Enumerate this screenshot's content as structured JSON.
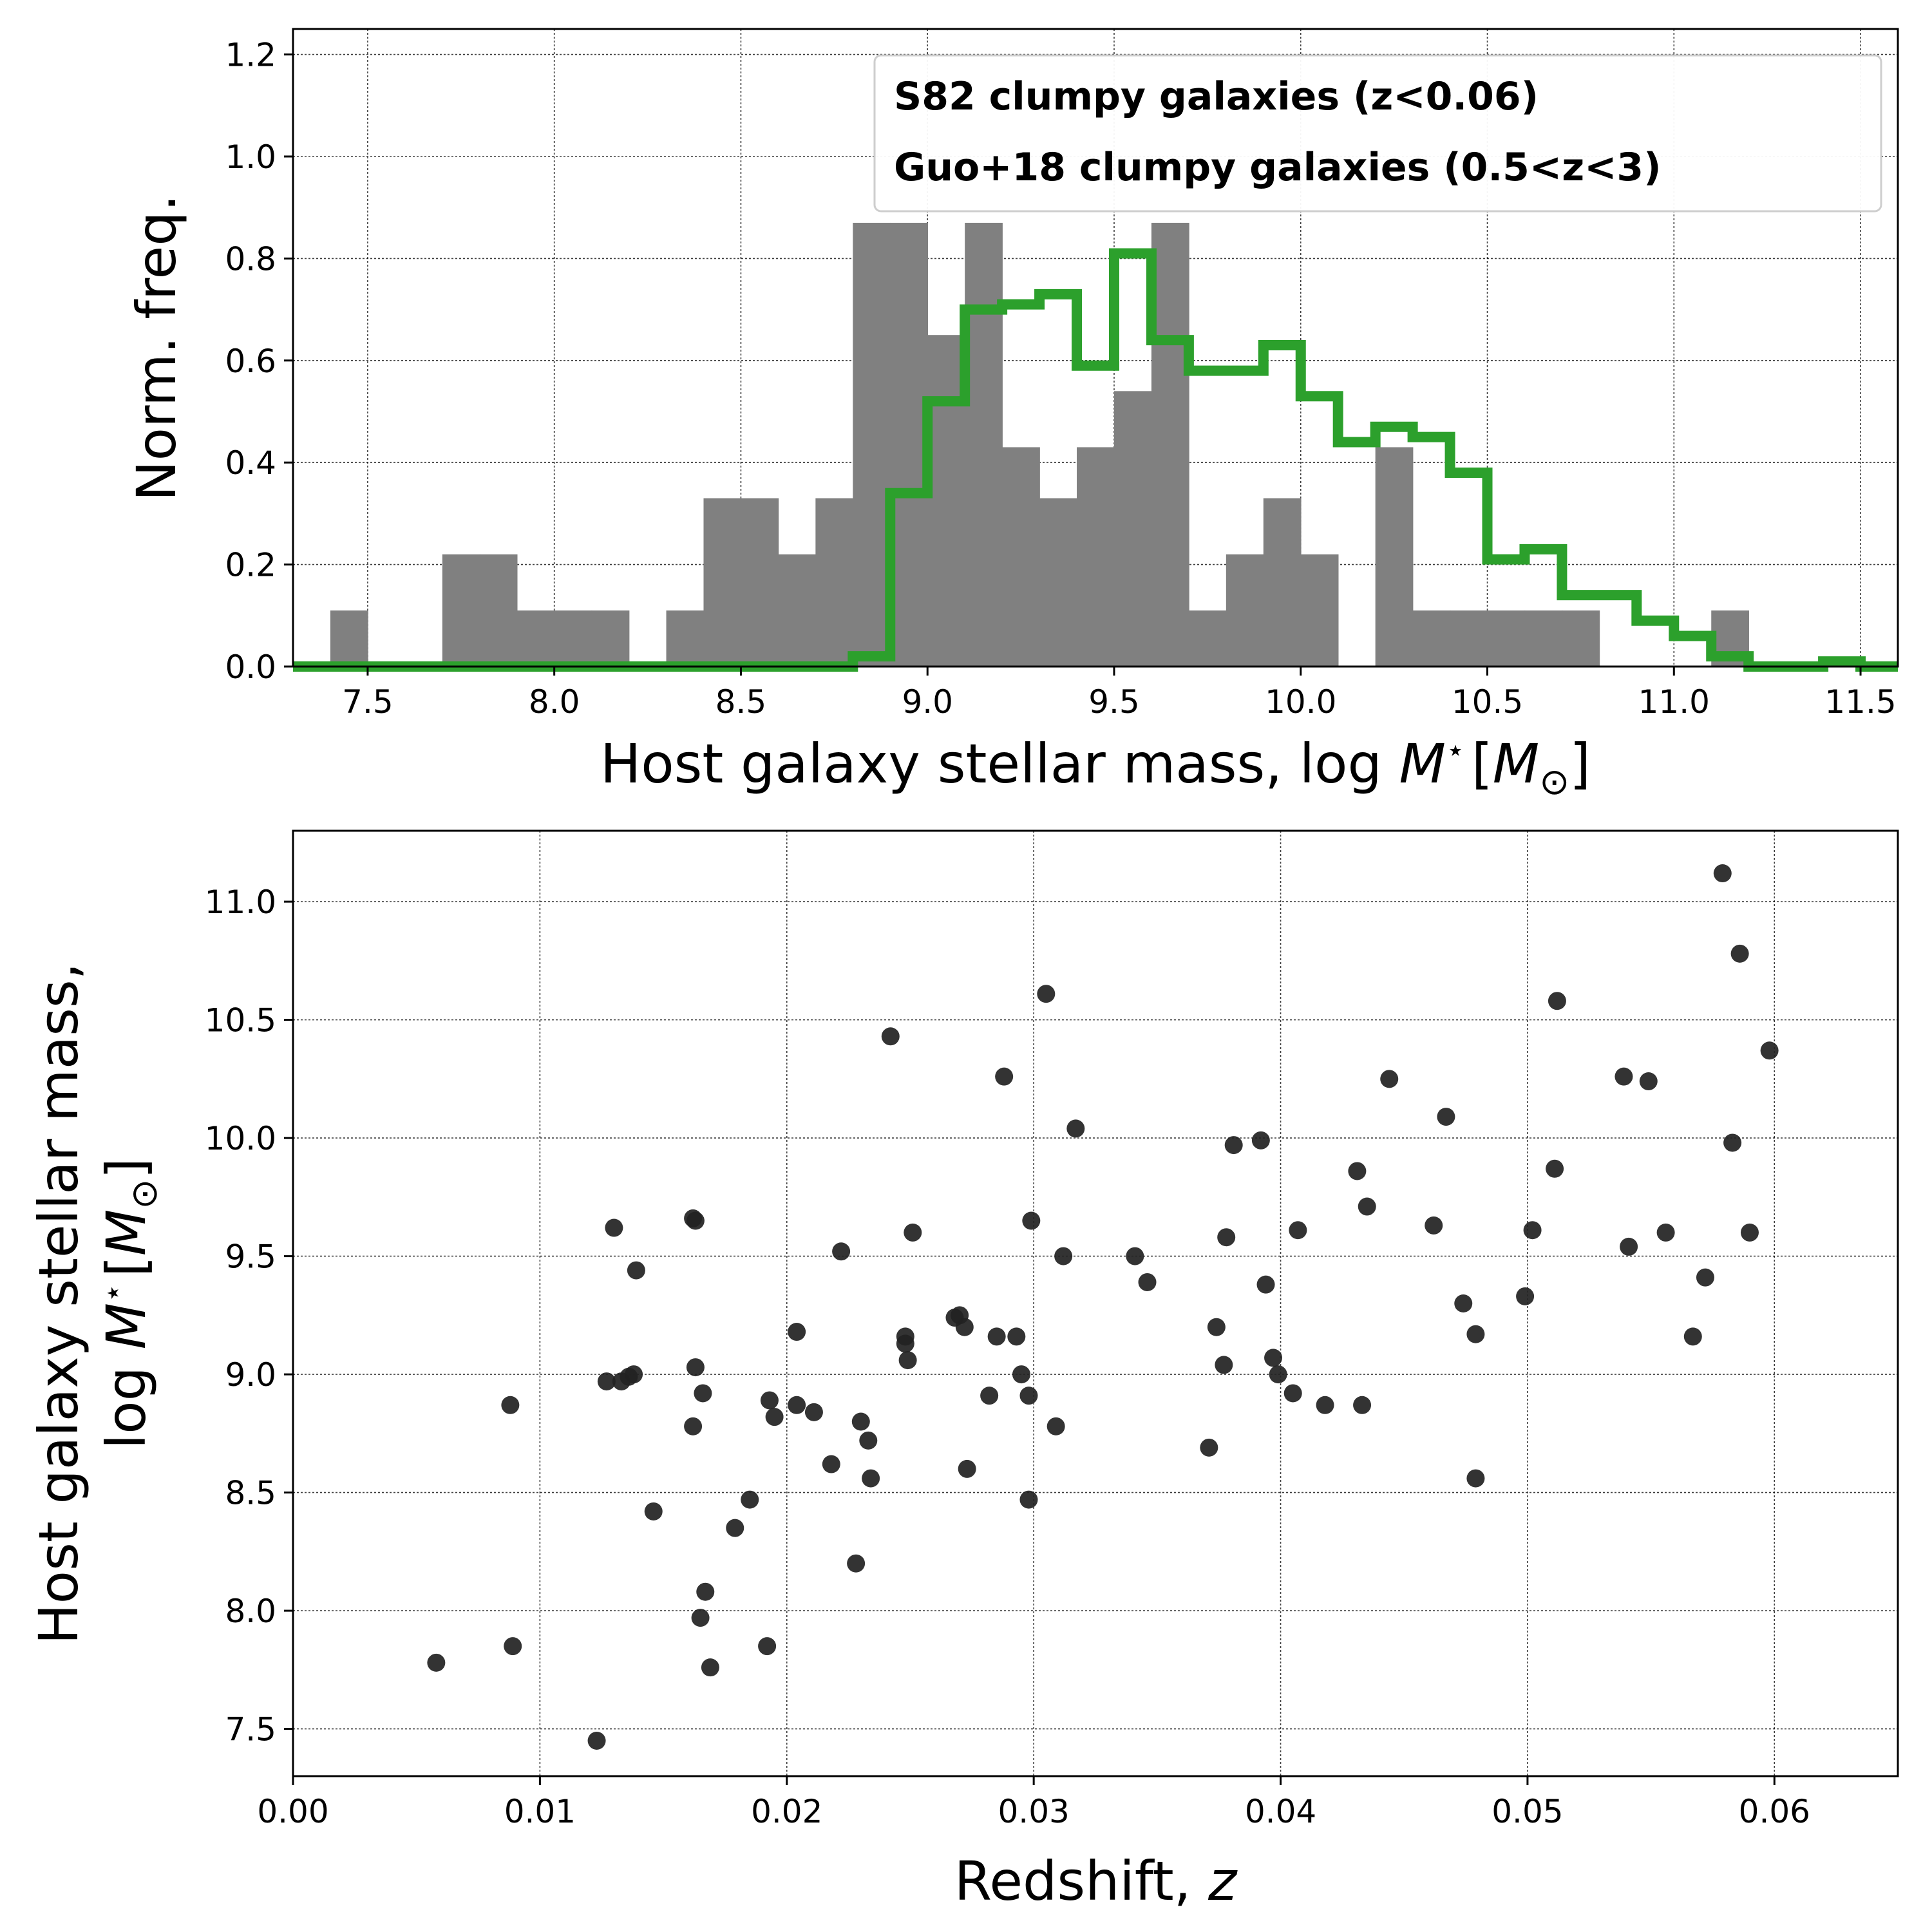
{
  "chart_data": [
    {
      "type": "histogram",
      "panel": "top",
      "xlabel": {
        "main": "Host galaxy stellar mass, log ",
        "math": "M",
        "sup": "⋆",
        "unit": "[M",
        "sub": "⊙",
        "close": "]"
      },
      "ylabel": "Norm. freq.",
      "xlim": [
        7.3,
        11.6
      ],
      "ylim": [
        0.0,
        1.25
      ],
      "xticks": [
        "7.5",
        "8.0",
        "8.5",
        "9.0",
        "9.5",
        "10.0",
        "10.5",
        "11.0",
        "11.5"
      ],
      "yticks": [
        "0.0",
        "0.2",
        "0.4",
        "0.6",
        "0.8",
        "1.0",
        "1.2"
      ],
      "grid": true,
      "legend": {
        "placement": "top-right"
      },
      "series": [
        {
          "name": "S82 clumpy galaxies (z<0.06)",
          "style": "filled-bars",
          "color": "#808080",
          "bin_width": 0.1,
          "bin_starts": [
            7.4,
            7.7,
            7.8,
            7.9,
            8.0,
            8.1,
            8.3,
            8.4,
            8.5,
            8.6,
            8.7,
            8.8,
            8.9,
            9.0,
            9.1,
            9.2,
            9.3,
            9.4,
            9.5,
            9.6,
            9.7,
            9.8,
            9.9,
            10.0,
            10.2,
            10.3,
            10.4,
            10.5,
            10.6,
            10.7,
            11.1
          ],
          "values": [
            0.11,
            0.22,
            0.22,
            0.11,
            0.11,
            0.11,
            0.11,
            0.33,
            0.33,
            0.22,
            0.33,
            0.87,
            0.87,
            0.65,
            0.87,
            0.43,
            0.33,
            0.43,
            0.54,
            0.87,
            0.11,
            0.22,
            0.33,
            0.22,
            0.43,
            0.11,
            0.11,
            0.11,
            0.11,
            0.11,
            0.11
          ]
        },
        {
          "name": "Guo+18 clumpy galaxies (0.5<z<3)",
          "style": "step",
          "color": "#2ca02c",
          "bin_width": 0.1,
          "bin_starts": [
            7.3,
            7.4,
            7.5,
            7.6,
            7.7,
            7.8,
            7.9,
            8.0,
            8.1,
            8.2,
            8.3,
            8.4,
            8.5,
            8.6,
            8.7,
            8.8,
            8.9,
            9.0,
            9.1,
            9.2,
            9.3,
            9.4,
            9.5,
            9.6,
            9.7,
            9.8,
            9.9,
            10.0,
            10.1,
            10.2,
            10.3,
            10.4,
            10.5,
            10.6,
            10.7,
            10.8,
            10.9,
            11.0,
            11.1,
            11.2,
            11.3,
            11.4,
            11.5
          ],
          "values": [
            0.0,
            0.0,
            0.0,
            0.0,
            0.0,
            0.0,
            0.0,
            0.0,
            0.0,
            0.0,
            0.0,
            0.0,
            0.0,
            0.0,
            0.0,
            0.02,
            0.34,
            0.52,
            0.7,
            0.71,
            0.73,
            0.59,
            0.81,
            0.64,
            0.58,
            0.58,
            0.63,
            0.53,
            0.44,
            0.47,
            0.45,
            0.38,
            0.21,
            0.23,
            0.14,
            0.14,
            0.09,
            0.06,
            0.02,
            0.0,
            0.0,
            0.01,
            0.0
          ]
        }
      ]
    },
    {
      "type": "scatter",
      "panel": "bottom",
      "xlabel": {
        "main": "Redshift, ",
        "math": "z"
      },
      "ylabel": {
        "line1": "Host galaxy stellar mass,",
        "main": "log ",
        "math": "M",
        "sup": "⋆",
        "unit": "[M",
        "sub": "⊙",
        "close": "]"
      },
      "xlim": [
        0.0,
        0.065
      ],
      "ylim": [
        7.3,
        11.3
      ],
      "xticks": [
        "0.00",
        "0.01",
        "0.02",
        "0.03",
        "0.04",
        "0.05",
        "0.06"
      ],
      "yticks": [
        "7.5",
        "8.0",
        "8.5",
        "9.0",
        "9.5",
        "10.0",
        "10.5",
        "11.0"
      ],
      "grid": true,
      "marker_color": "#222222",
      "points": [
        [
          0.0058,
          7.78
        ],
        [
          0.0088,
          8.87
        ],
        [
          0.0089,
          7.85
        ],
        [
          0.0123,
          7.45
        ],
        [
          0.0127,
          8.97
        ],
        [
          0.013,
          9.62
        ],
        [
          0.0133,
          8.97
        ],
        [
          0.0136,
          8.99
        ],
        [
          0.0138,
          9.0
        ],
        [
          0.0139,
          9.44
        ],
        [
          0.0146,
          8.42
        ],
        [
          0.0162,
          9.66
        ],
        [
          0.0163,
          9.65
        ],
        [
          0.0163,
          9.03
        ],
        [
          0.0162,
          8.78
        ],
        [
          0.0165,
          7.97
        ],
        [
          0.0166,
          8.92
        ],
        [
          0.0167,
          8.08
        ],
        [
          0.0169,
          7.76
        ],
        [
          0.0179,
          8.35
        ],
        [
          0.0185,
          8.47
        ],
        [
          0.0192,
          7.85
        ],
        [
          0.0193,
          8.89
        ],
        [
          0.0195,
          8.82
        ],
        [
          0.0204,
          9.18
        ],
        [
          0.0204,
          8.87
        ],
        [
          0.0211,
          8.84
        ],
        [
          0.0218,
          8.62
        ],
        [
          0.0222,
          9.52
        ],
        [
          0.0228,
          8.2
        ],
        [
          0.023,
          8.8
        ],
        [
          0.0233,
          8.72
        ],
        [
          0.0234,
          8.56
        ],
        [
          0.0242,
          10.43
        ],
        [
          0.0248,
          9.13
        ],
        [
          0.0248,
          9.16
        ],
        [
          0.0249,
          9.06
        ],
        [
          0.0251,
          9.6
        ],
        [
          0.0268,
          9.24
        ],
        [
          0.027,
          9.25
        ],
        [
          0.0272,
          9.2
        ],
        [
          0.0273,
          8.6
        ],
        [
          0.0282,
          8.91
        ],
        [
          0.0285,
          9.16
        ],
        [
          0.0288,
          10.26
        ],
        [
          0.0293,
          9.16
        ],
        [
          0.0295,
          9.0
        ],
        [
          0.0298,
          8.91
        ],
        [
          0.0298,
          8.47
        ],
        [
          0.0299,
          9.65
        ],
        [
          0.0305,
          10.61
        ],
        [
          0.0309,
          8.78
        ],
        [
          0.0312,
          9.5
        ],
        [
          0.0317,
          10.04
        ],
        [
          0.0341,
          9.5
        ],
        [
          0.0346,
          9.39
        ],
        [
          0.0371,
          8.69
        ],
        [
          0.0374,
          9.2
        ],
        [
          0.0377,
          9.04
        ],
        [
          0.0378,
          9.58
        ],
        [
          0.0381,
          9.97
        ],
        [
          0.0392,
          9.99
        ],
        [
          0.0394,
          9.38
        ],
        [
          0.0397,
          9.07
        ],
        [
          0.0399,
          9.0
        ],
        [
          0.0405,
          8.92
        ],
        [
          0.0407,
          9.61
        ],
        [
          0.0418,
          8.87
        ],
        [
          0.0431,
          9.86
        ],
        [
          0.0433,
          8.87
        ],
        [
          0.0435,
          9.71
        ],
        [
          0.0444,
          10.25
        ],
        [
          0.0462,
          9.63
        ],
        [
          0.0467,
          10.09
        ],
        [
          0.0474,
          9.3
        ],
        [
          0.0479,
          9.17
        ],
        [
          0.0479,
          8.56
        ],
        [
          0.0499,
          9.33
        ],
        [
          0.0502,
          9.61
        ],
        [
          0.0511,
          9.87
        ],
        [
          0.0512,
          10.58
        ],
        [
          0.0539,
          10.26
        ],
        [
          0.0541,
          9.54
        ],
        [
          0.0549,
          10.24
        ],
        [
          0.0556,
          9.6
        ],
        [
          0.0567,
          9.16
        ],
        [
          0.0572,
          9.41
        ],
        [
          0.0579,
          11.12
        ],
        [
          0.0583,
          9.98
        ],
        [
          0.0586,
          10.78
        ],
        [
          0.059,
          9.6
        ],
        [
          0.0598,
          10.37
        ]
      ]
    }
  ]
}
